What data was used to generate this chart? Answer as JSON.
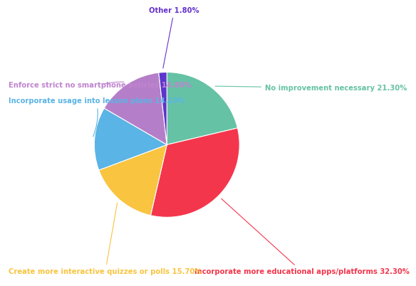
{
  "labels": [
    "No improvement necessary 21.30%",
    "Incorporate more educational apps/platforms 32.30%",
    "Create more interactive quizzes or polls 15.70%",
    "Incorporate usage into lesson plans 14.10%",
    "Enforce strict no smartphone policies 14.80%",
    "Other 1.80%"
  ],
  "values": [
    21.3,
    32.3,
    15.7,
    14.1,
    14.8,
    1.8
  ],
  "colors": [
    "#66c2a5",
    "#f4364c",
    "#f9c440",
    "#5ab4e5",
    "#b57ec8",
    "#5c35cc"
  ],
  "startangle": 90,
  "figsize": [
    6.0,
    4.1
  ],
  "label_colors": [
    "#66c2a5",
    "#f4364c",
    "#f9c440",
    "#5ab4e5",
    "#c084d0",
    "#6633cc"
  ],
  "label_fontsize": 7.2,
  "bg_color": "#ffffff"
}
